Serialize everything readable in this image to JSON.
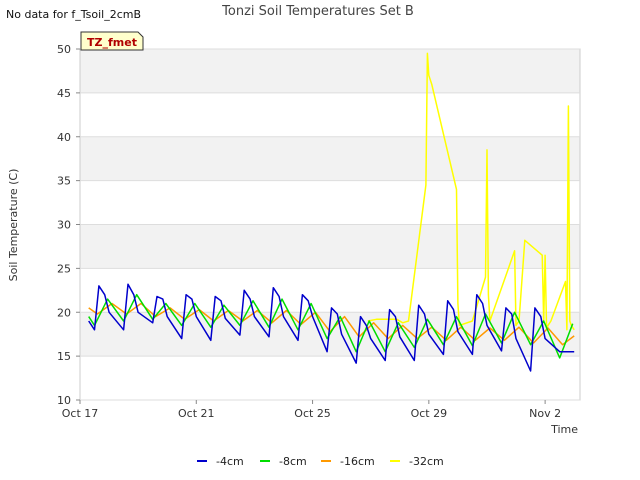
{
  "header": {
    "title": "Tonzi Soil Temperatures Set B",
    "no_data_msg": "No data for f_Tsoil_2cmB",
    "badge": "TZ_fmet"
  },
  "chart_data": {
    "type": "line",
    "title": "Tonzi Soil Temperatures Set B",
    "xlabel": "Time",
    "ylabel": "Soil Temperature (C)",
    "ylim": [
      10,
      50
    ],
    "xlim": [
      0,
      17.2
    ],
    "x_units": "days since Oct 17",
    "yticks": [
      10,
      15,
      20,
      25,
      30,
      35,
      40,
      45,
      50
    ],
    "xticks": [
      {
        "value": 0,
        "label": "Oct 17"
      },
      {
        "value": 4,
        "label": "Oct 21"
      },
      {
        "value": 8,
        "label": "Oct 25"
      },
      {
        "value": 12,
        "label": "Oct 29"
      },
      {
        "value": 16,
        "label": "Nov 2"
      }
    ],
    "grid": true,
    "legend_position": "bottom",
    "series": [
      {
        "name": "-4cm",
        "color": "#0000cc",
        "x": [
          0.3,
          0.5,
          0.65,
          0.85,
          1.0,
          1.5,
          1.65,
          1.85,
          2.0,
          2.5,
          2.65,
          2.85,
          3.0,
          3.5,
          3.65,
          3.85,
          4.0,
          4.5,
          4.65,
          4.85,
          5.0,
          5.5,
          5.65,
          5.85,
          6.0,
          6.5,
          6.65,
          6.85,
          7.0,
          7.5,
          7.65,
          7.85,
          8.0,
          8.5,
          8.65,
          8.85,
          9.0,
          9.5,
          9.65,
          9.85,
          10.0,
          10.5,
          10.65,
          10.85,
          11.0,
          11.5,
          11.65,
          11.85,
          12.0,
          12.5,
          12.65,
          12.85,
          13.0,
          13.5,
          13.65,
          13.85,
          14.0,
          14.5,
          14.65,
          14.85,
          15.0,
          15.5,
          15.65,
          15.85,
          16.0,
          16.5,
          16.65,
          16.85,
          17.0
        ],
        "y": [
          19,
          18,
          23,
          22,
          20,
          18,
          23.2,
          22,
          20,
          18.8,
          21.8,
          21.5,
          19.5,
          17,
          22,
          21.5,
          19.5,
          16.8,
          21.8,
          21.3,
          19.3,
          17.4,
          22.5,
          21.5,
          19.5,
          17.2,
          22.8,
          21.8,
          19.5,
          16.8,
          22,
          21.3,
          19.5,
          15.5,
          20.5,
          19.8,
          17.5,
          14.2,
          19.5,
          18.5,
          17,
          14.5,
          20.3,
          19.5,
          17.2,
          14.5,
          20.8,
          19.8,
          17.5,
          15.2,
          21.3,
          20.3,
          17.8,
          15.2,
          22,
          21,
          18.5,
          15.6,
          20.5,
          19.8,
          17,
          13.3,
          20.5,
          19.5,
          17,
          15.5,
          15.5,
          15.5,
          15.5
        ]
      },
      {
        "name": "-8cm",
        "color": "#00dd00",
        "x": [
          0.3,
          0.5,
          0.95,
          1.5,
          1.95,
          2.5,
          2.95,
          3.5,
          3.95,
          4.5,
          4.95,
          5.5,
          5.95,
          6.5,
          6.95,
          7.5,
          7.95,
          8.5,
          8.95,
          9.5,
          9.95,
          10.5,
          10.95,
          11.5,
          11.95,
          12.5,
          12.95,
          13.5,
          13.95,
          14.5,
          14.95,
          15.5,
          15.95,
          16.5,
          16.95
        ],
        "y": [
          19.5,
          18.5,
          21.5,
          19,
          22,
          19.2,
          21,
          18.5,
          21,
          18.3,
          20.8,
          18.5,
          21.3,
          18.3,
          21.5,
          18,
          21,
          17,
          19.5,
          15.5,
          19,
          15.5,
          18.8,
          16,
          19.2,
          16.3,
          19.5,
          16.2,
          19.8,
          16.5,
          20,
          16.3,
          19,
          14.8,
          18.7
        ]
      },
      {
        "name": "-16cm",
        "color": "#ff9900",
        "x": [
          0.3,
          0.6,
          1.1,
          1.6,
          2.1,
          2.6,
          3.1,
          3.6,
          4.1,
          4.6,
          5.1,
          5.6,
          6.1,
          6.6,
          7.1,
          7.6,
          8.1,
          8.6,
          9.1,
          9.6,
          10.1,
          10.6,
          11.1,
          11.6,
          12.1,
          12.6,
          13.1,
          13.6,
          14.1,
          14.6,
          15.1,
          15.6,
          16.1,
          16.6,
          17.0
        ],
        "y": [
          20.5,
          19.8,
          21,
          19.8,
          21,
          19.5,
          20.5,
          19.2,
          20.3,
          19,
          20.2,
          19,
          20.2,
          18.8,
          20.2,
          18.6,
          20,
          17.8,
          19.5,
          17.2,
          18.8,
          17,
          18.5,
          17,
          18.3,
          16.8,
          18.3,
          16.8,
          18.2,
          16.8,
          18.3,
          16.5,
          18.2,
          16.3,
          17.3
        ]
      },
      {
        "name": "-32cm",
        "color": "#ffff00",
        "x": [
          9.9,
          10.2,
          10.9,
          11.1,
          11.3,
          11.9,
          11.95,
          12.0,
          12.1,
          12.95,
          13.0,
          13.05,
          13.5,
          13.95,
          14.0,
          14.05,
          14.1,
          14.95,
          15.0,
          15.1,
          15.3,
          15.9,
          15.95,
          16.0,
          16.05,
          16.1,
          16.2,
          16.7,
          16.75,
          16.8,
          16.85,
          16.9,
          17.0
        ],
        "y": [
          19,
          19.2,
          19.2,
          18.8,
          19,
          34.5,
          49.5,
          47,
          46,
          34,
          21,
          18.5,
          19,
          24,
          38.5,
          22,
          19,
          27,
          18.5,
          19,
          28.2,
          26.5,
          19,
          26.5,
          18,
          18.5,
          19,
          23.5,
          18,
          43.5,
          19,
          18.5,
          18
        ]
      }
    ]
  }
}
